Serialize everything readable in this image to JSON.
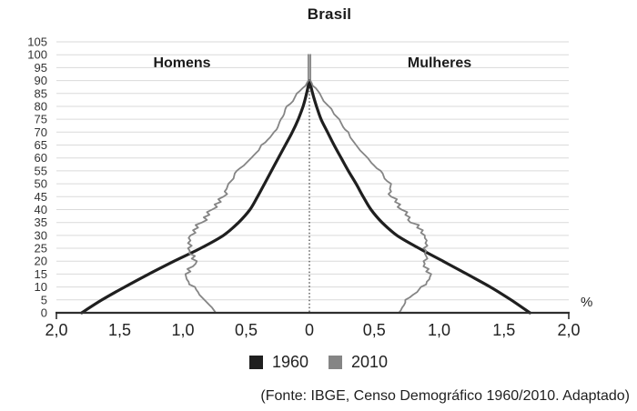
{
  "source": "(Fonte: IBGE, Censo Demográfico 1960/2010. Adaptado)",
  "chart_data": {
    "type": "line",
    "subtype": "population-pyramid",
    "title": "Brasil",
    "left_label": "Homens",
    "right_label": "Mulheres",
    "unit_label": "%",
    "xlim": [
      -2.0,
      2.0
    ],
    "ylim": [
      0,
      105
    ],
    "grid": true,
    "center_line": "dotted",
    "legend_position": "bottom",
    "x_axis": {
      "ticks": [
        {
          "label": "2,0",
          "value": -2.0
        },
        {
          "label": "1,5",
          "value": -1.5
        },
        {
          "label": "1,0",
          "value": -1.0
        },
        {
          "label": "0,5",
          "value": -0.5
        },
        {
          "label": "0",
          "value": 0.0
        },
        {
          "label": "0,5",
          "value": 0.5
        },
        {
          "label": "1,0",
          "value": 1.0
        },
        {
          "label": "1,5",
          "value": 1.5
        },
        {
          "label": "2,0",
          "value": 2.0
        }
      ]
    },
    "y_axis": {
      "min": 0,
      "max": 105,
      "step": 5,
      "tick_labels": [
        "0",
        "5",
        "10",
        "15",
        "20",
        "25",
        "30",
        "35",
        "40",
        "45",
        "50",
        "55",
        "60",
        "65",
        "70",
        "75",
        "80",
        "85",
        "90",
        "95",
        "100",
        "105"
      ]
    },
    "series": [
      {
        "name": "1960",
        "color": "#1f1f1f",
        "stroke_width": 3.2,
        "smooth": true,
        "homens": [
          [
            0,
            1.8
          ],
          [
            5,
            1.64
          ],
          [
            10,
            1.46
          ],
          [
            15,
            1.27
          ],
          [
            20,
            1.07
          ],
          [
            25,
            0.86
          ],
          [
            30,
            0.68
          ],
          [
            35,
            0.56
          ],
          [
            40,
            0.47
          ],
          [
            45,
            0.41
          ],
          [
            50,
            0.355
          ],
          [
            55,
            0.3
          ],
          [
            60,
            0.245
          ],
          [
            65,
            0.19
          ],
          [
            70,
            0.135
          ],
          [
            75,
            0.088
          ],
          [
            80,
            0.05
          ],
          [
            85,
            0.022
          ],
          [
            90,
            0.001
          ]
        ],
        "mulheres": [
          [
            0,
            1.7
          ],
          [
            5,
            1.555
          ],
          [
            10,
            1.395
          ],
          [
            15,
            1.215
          ],
          [
            20,
            1.03
          ],
          [
            25,
            0.845
          ],
          [
            30,
            0.675
          ],
          [
            35,
            0.56
          ],
          [
            40,
            0.475
          ],
          [
            45,
            0.415
          ],
          [
            50,
            0.36
          ],
          [
            55,
            0.3
          ],
          [
            60,
            0.245
          ],
          [
            65,
            0.19
          ],
          [
            70,
            0.14
          ],
          [
            75,
            0.09
          ],
          [
            80,
            0.055
          ],
          [
            85,
            0.025
          ],
          [
            90,
            0.001
          ]
        ]
      },
      {
        "name": "2010",
        "color": "#858585",
        "stroke_width": 1.8,
        "smooth": false,
        "homens": [
          [
            0,
            0.74
          ],
          [
            1,
            0.755
          ],
          [
            2,
            0.77
          ],
          [
            3,
            0.79
          ],
          [
            4,
            0.81
          ],
          [
            5,
            0.83
          ],
          [
            6,
            0.85
          ],
          [
            7,
            0.87
          ],
          [
            8,
            0.88
          ],
          [
            9,
            0.895
          ],
          [
            10,
            0.905
          ],
          [
            11,
            0.95
          ],
          [
            12,
            0.955
          ],
          [
            13,
            0.97
          ],
          [
            14,
            0.975
          ],
          [
            15,
            0.98
          ],
          [
            16,
            0.94
          ],
          [
            17,
            0.965
          ],
          [
            18,
            0.92
          ],
          [
            19,
            0.9
          ],
          [
            20,
            0.89
          ],
          [
            21,
            0.93
          ],
          [
            22,
            0.905
          ],
          [
            23,
            0.95
          ],
          [
            24,
            0.945
          ],
          [
            25,
            0.96
          ],
          [
            26,
            0.93
          ],
          [
            27,
            0.96
          ],
          [
            28,
            0.94
          ],
          [
            29,
            0.955
          ],
          [
            30,
            0.94
          ],
          [
            31,
            0.9
          ],
          [
            32,
            0.92
          ],
          [
            33,
            0.88
          ],
          [
            34,
            0.9
          ],
          [
            35,
            0.85
          ],
          [
            36,
            0.81
          ],
          [
            37,
            0.835
          ],
          [
            38,
            0.79
          ],
          [
            39,
            0.81
          ],
          [
            40,
            0.77
          ],
          [
            41,
            0.73
          ],
          [
            42,
            0.75
          ],
          [
            43,
            0.7
          ],
          [
            44,
            0.72
          ],
          [
            45,
            0.68
          ],
          [
            46,
            0.65
          ],
          [
            47,
            0.67
          ],
          [
            48,
            0.655
          ],
          [
            50,
            0.64
          ],
          [
            52,
            0.6
          ],
          [
            54,
            0.59
          ],
          [
            55,
            0.575
          ],
          [
            56,
            0.55
          ],
          [
            57,
            0.52
          ],
          [
            58,
            0.5
          ],
          [
            60,
            0.46
          ],
          [
            61,
            0.44
          ],
          [
            62,
            0.42
          ],
          [
            63,
            0.4
          ],
          [
            65,
            0.38
          ],
          [
            66,
            0.35
          ],
          [
            67,
            0.33
          ],
          [
            68,
            0.31
          ],
          [
            70,
            0.28
          ],
          [
            71,
            0.26
          ],
          [
            72,
            0.25
          ],
          [
            74,
            0.235
          ],
          [
            75,
            0.225
          ],
          [
            76,
            0.21
          ],
          [
            77,
            0.2
          ],
          [
            79,
            0.19
          ],
          [
            80,
            0.18
          ],
          [
            81,
            0.15
          ],
          [
            82,
            0.13
          ],
          [
            84,
            0.11
          ],
          [
            85,
            0.1
          ],
          [
            86,
            0.075
          ],
          [
            87,
            0.055
          ],
          [
            88,
            0.03
          ],
          [
            89,
            0.02
          ],
          [
            90,
            0.008
          ],
          [
            100,
            0.008
          ]
        ],
        "mulheres": [
          [
            0,
            0.69
          ],
          [
            1,
            0.705
          ],
          [
            2,
            0.715
          ],
          [
            3,
            0.73
          ],
          [
            4,
            0.74
          ],
          [
            5,
            0.74
          ],
          [
            6,
            0.775
          ],
          [
            7,
            0.8
          ],
          [
            8,
            0.83
          ],
          [
            9,
            0.845
          ],
          [
            10,
            0.86
          ],
          [
            11,
            0.9
          ],
          [
            12,
            0.905
          ],
          [
            13,
            0.925
          ],
          [
            14,
            0.93
          ],
          [
            15,
            0.94
          ],
          [
            16,
            0.9
          ],
          [
            17,
            0.92
          ],
          [
            18,
            0.88
          ],
          [
            19,
            0.89
          ],
          [
            20,
            0.88
          ],
          [
            21,
            0.91
          ],
          [
            22,
            0.9
          ],
          [
            23,
            0.89
          ],
          [
            24,
            0.9
          ],
          [
            25,
            0.88
          ],
          [
            26,
            0.91
          ],
          [
            27,
            0.895
          ],
          [
            28,
            0.905
          ],
          [
            29,
            0.89
          ],
          [
            30,
            0.89
          ],
          [
            31,
            0.86
          ],
          [
            32,
            0.875
          ],
          [
            33,
            0.83
          ],
          [
            34,
            0.845
          ],
          [
            35,
            0.78
          ],
          [
            36,
            0.76
          ],
          [
            37,
            0.775
          ],
          [
            38,
            0.74
          ],
          [
            39,
            0.755
          ],
          [
            40,
            0.71
          ],
          [
            41,
            0.68
          ],
          [
            42,
            0.7
          ],
          [
            43,
            0.66
          ],
          [
            44,
            0.675
          ],
          [
            45,
            0.63
          ],
          [
            46,
            0.61
          ],
          [
            47,
            0.63
          ],
          [
            48,
            0.62
          ],
          [
            50,
            0.63
          ],
          [
            51,
            0.6
          ],
          [
            52,
            0.58
          ],
          [
            54,
            0.565
          ],
          [
            55,
            0.55
          ],
          [
            56,
            0.52
          ],
          [
            57,
            0.5
          ],
          [
            58,
            0.48
          ],
          [
            60,
            0.45
          ],
          [
            61,
            0.43
          ],
          [
            62,
            0.41
          ],
          [
            63,
            0.39
          ],
          [
            65,
            0.36
          ],
          [
            66,
            0.345
          ],
          [
            67,
            0.33
          ],
          [
            68,
            0.315
          ],
          [
            70,
            0.3
          ],
          [
            71,
            0.275
          ],
          [
            72,
            0.26
          ],
          [
            74,
            0.24
          ],
          [
            75,
            0.23
          ],
          [
            76,
            0.21
          ],
          [
            77,
            0.19
          ],
          [
            79,
            0.17
          ],
          [
            80,
            0.15
          ],
          [
            81,
            0.13
          ],
          [
            82,
            0.11
          ],
          [
            84,
            0.09
          ],
          [
            85,
            0.08
          ],
          [
            86,
            0.065
          ],
          [
            87,
            0.05
          ],
          [
            88,
            0.025
          ],
          [
            89,
            0.018
          ],
          [
            90,
            0.008
          ],
          [
            100,
            0.008
          ]
        ]
      }
    ]
  }
}
